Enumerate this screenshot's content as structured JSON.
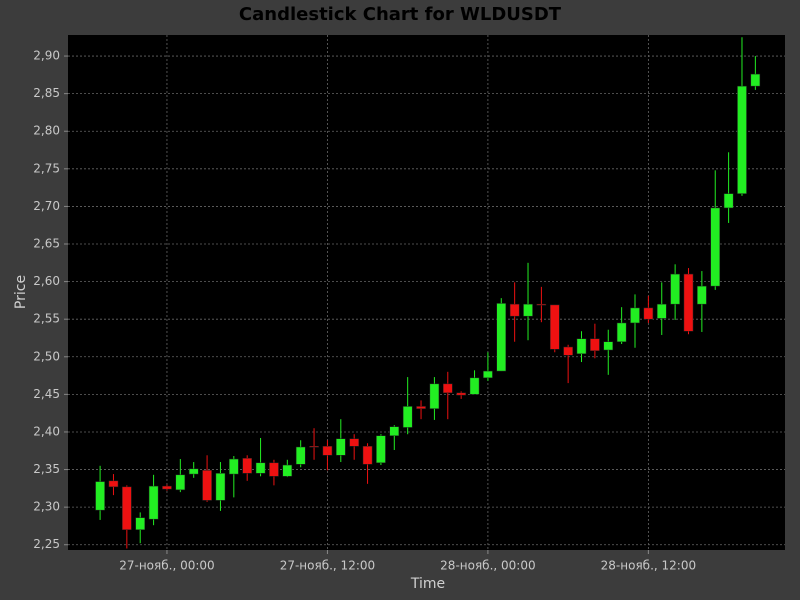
{
  "chart_data": {
    "type": "candlestick",
    "title": "Candlestick Chart for WLDUSDT",
    "x_label": "Time",
    "y_label": "Price",
    "x": [
      "11-26T19:00",
      "11-26T20:00",
      "11-26T21:00",
      "11-26T22:00",
      "11-26T23:00",
      "11-27T00:00",
      "11-27T01:00",
      "11-27T02:00",
      "11-27T03:00",
      "11-27T04:00",
      "11-27T05:00",
      "11-27T06:00",
      "11-27T07:00",
      "11-27T08:00",
      "11-27T09:00",
      "11-27T10:00",
      "11-27T11:00",
      "11-27T12:00",
      "11-27T13:00",
      "11-27T14:00",
      "11-27T15:00",
      "11-27T16:00",
      "11-27T17:00",
      "11-27T18:00",
      "11-27T19:00",
      "11-27T20:00",
      "11-27T21:00",
      "11-27T22:00",
      "11-27T23:00",
      "11-28T00:00",
      "11-28T01:00",
      "11-28T02:00",
      "11-28T03:00",
      "11-28T04:00",
      "11-28T05:00",
      "11-28T06:00",
      "11-28T07:00",
      "11-28T08:00",
      "11-28T09:00",
      "11-28T10:00",
      "11-28T11:00",
      "11-28T12:00",
      "11-28T13:00",
      "11-28T14:00",
      "11-28T15:00",
      "11-28T16:00",
      "11-28T17:00",
      "11-28T18:00",
      "11-28T19:00",
      "11-28T20:00"
    ],
    "open": [
      2.296,
      2.335,
      2.327,
      2.27,
      2.284,
      2.328,
      2.323,
      2.344,
      2.349,
      2.309,
      2.344,
      2.365,
      2.345,
      2.359,
      2.341,
      2.357,
      2.381,
      2.381,
      2.369,
      2.391,
      2.381,
      2.359,
      2.395,
      2.406,
      2.434,
      2.431,
      2.464,
      2.452,
      2.45,
      2.472,
      2.481,
      2.57,
      2.554,
      2.57,
      2.569,
      2.513,
      2.504,
      2.524,
      2.509,
      2.52,
      2.545,
      2.565,
      2.551,
      2.57,
      2.61,
      2.57,
      2.594,
      2.698,
      2.717,
      2.86
    ],
    "high": [
      2.355,
      2.344,
      2.329,
      2.293,
      2.343,
      2.33,
      2.364,
      2.36,
      2.369,
      2.36,
      2.368,
      2.369,
      2.392,
      2.363,
      2.363,
      2.389,
      2.405,
      2.389,
      2.417,
      2.397,
      2.385,
      2.397,
      2.409,
      2.473,
      2.442,
      2.473,
      2.48,
      2.454,
      2.482,
      2.506,
      2.578,
      2.599,
      2.625,
      2.593,
      2.569,
      2.516,
      2.534,
      2.544,
      2.536,
      2.566,
      2.583,
      2.581,
      2.599,
      2.623,
      2.618,
      2.614,
      2.748,
      2.772,
      2.925,
      2.9
    ],
    "low": [
      2.283,
      2.316,
      2.245,
      2.252,
      2.276,
      2.322,
      2.32,
      2.339,
      2.307,
      2.295,
      2.313,
      2.335,
      2.341,
      2.329,
      2.34,
      2.353,
      2.363,
      2.349,
      2.36,
      2.363,
      2.331,
      2.356,
      2.376,
      2.397,
      2.417,
      2.416,
      2.417,
      2.444,
      2.45,
      2.468,
      2.481,
      2.52,
      2.522,
      2.546,
      2.506,
      2.465,
      2.493,
      2.498,
      2.476,
      2.517,
      2.512,
      2.545,
      2.529,
      2.549,
      2.53,
      2.533,
      2.589,
      2.678,
      2.714,
      2.855
    ],
    "close": [
      2.334,
      2.327,
      2.27,
      2.286,
      2.328,
      2.324,
      2.343,
      2.351,
      2.309,
      2.345,
      2.364,
      2.345,
      2.359,
      2.341,
      2.356,
      2.38,
      2.38,
      2.369,
      2.391,
      2.381,
      2.357,
      2.395,
      2.407,
      2.434,
      2.431,
      2.464,
      2.452,
      2.449,
      2.472,
      2.481,
      2.571,
      2.554,
      2.57,
      2.569,
      2.51,
      2.502,
      2.524,
      2.508,
      2.52,
      2.545,
      2.565,
      2.55,
      2.57,
      2.61,
      2.534,
      2.594,
      2.698,
      2.717,
      2.86,
      2.876
    ],
    "up_color": "#22ee22",
    "down_color": "#ee1111",
    "xlim": [
      "11-26T16:36",
      "11-28T22:13"
    ],
    "xticks": [
      {
        "value": "11-27T00:00",
        "label": "27-нояб., 00:00"
      },
      {
        "value": "11-27T12:00",
        "label": "27-нояб., 12:00"
      },
      {
        "value": "11-28T00:00",
        "label": "28-нояб., 00:00"
      },
      {
        "value": "11-28T12:00",
        "label": "28-нояб., 12:00"
      }
    ],
    "ylim": [
      2.243,
      2.928
    ],
    "yticks": [
      {
        "value": 2.25,
        "label": "2,25"
      },
      {
        "value": 2.3,
        "label": "2,30"
      },
      {
        "value": 2.35,
        "label": "2,35"
      },
      {
        "value": 2.4,
        "label": "2,40"
      },
      {
        "value": 2.45,
        "label": "2,45"
      },
      {
        "value": 2.5,
        "label": "2,50"
      },
      {
        "value": 2.55,
        "label": "2,55"
      },
      {
        "value": 2.6,
        "label": "2,60"
      },
      {
        "value": 2.65,
        "label": "2,65"
      },
      {
        "value": 2.7,
        "label": "2,70"
      },
      {
        "value": 2.75,
        "label": "2,75"
      },
      {
        "value": 2.8,
        "label": "2,80"
      },
      {
        "value": 2.85,
        "label": "2,85"
      },
      {
        "value": 2.9,
        "label": "2,90"
      }
    ],
    "grid": true
  }
}
